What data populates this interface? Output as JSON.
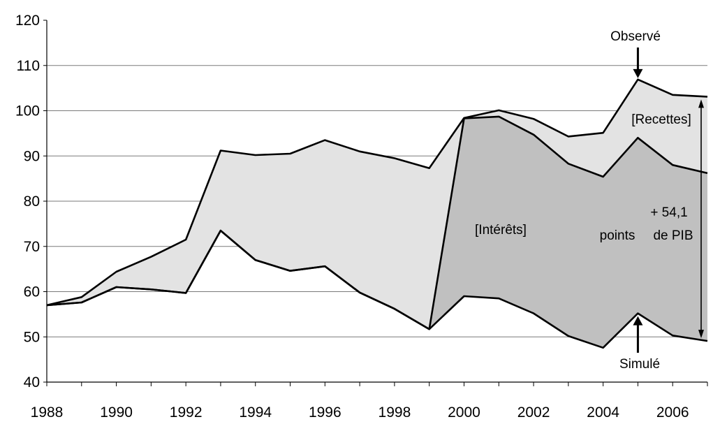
{
  "chart_data": {
    "type": "area",
    "x": [
      1988,
      1989,
      1990,
      1991,
      1992,
      1993,
      1994,
      1995,
      1996,
      1997,
      1998,
      1999,
      2000,
      2001,
      2002,
      2003,
      2004,
      2005,
      2006,
      2007
    ],
    "series": [
      {
        "name": "Observé",
        "values": [
          57.0,
          58.8,
          64.4,
          67.7,
          71.5,
          91.2,
          90.2,
          90.5,
          93.5,
          91.0,
          89.5,
          87.3,
          98.4,
          100.1,
          98.2,
          94.3,
          95.1,
          106.9,
          103.5,
          103.1
        ],
        "color": "#000000"
      },
      {
        "name": "",
        "values": [
          57.0,
          57.6,
          61.0,
          60.5,
          59.7,
          73.5,
          67.0,
          64.6,
          65.6,
          59.8,
          56.2,
          51.7,
          98.3,
          98.7,
          94.7,
          88.3,
          85.4,
          94.0,
          88.0,
          86.2
        ],
        "color": "#000000"
      },
      {
        "name": "Simulé",
        "values": [
          57.0,
          57.6,
          61.0,
          60.5,
          59.7,
          73.5,
          67.0,
          64.6,
          65.6,
          59.8,
          56.2,
          51.7,
          59.0,
          58.5,
          55.2,
          50.2,
          47.6,
          55.2,
          50.3,
          49.1
        ],
        "color": "#000000"
      }
    ],
    "bands": [
      {
        "label": "[Recettes]",
        "color": "#e3e3e3"
      },
      {
        "label": "[Intérêts]",
        "color": "#c0c0c0"
      }
    ],
    "xticks": [
      "1988",
      "1990",
      "1992",
      "1994",
      "1996",
      "1998",
      "2000",
      "2002",
      "2004",
      "2006"
    ],
    "yticks": [
      "40",
      "50",
      "60",
      "70",
      "80",
      "90",
      "100",
      "110",
      "120"
    ],
    "ylim": [
      40,
      120
    ],
    "xlim": [
      1988,
      2007
    ],
    "grid": true,
    "annotations": {
      "observed": "Observé",
      "simulated": "Simulé",
      "recettes": "[Recettes]",
      "interets": "[Intérêts]",
      "gap_line1": "+ 54,1",
      "gap_line2_a": "points",
      "gap_line2_b": "de PIB"
    }
  }
}
